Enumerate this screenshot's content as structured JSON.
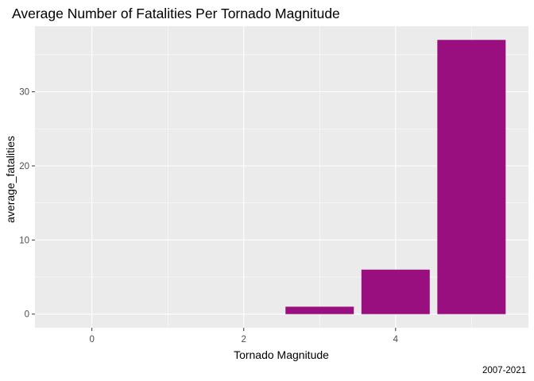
{
  "chart_data": {
    "type": "bar",
    "title": "Average Number of Fatalities Per Tornado Magnitude",
    "xlabel": "Tornado Magnitude",
    "ylabel": "average_fatalities",
    "caption": "2007-2021",
    "x": [
      0,
      1,
      2,
      3,
      4,
      5
    ],
    "values": [
      0,
      0,
      0,
      1,
      6,
      37
    ],
    "xlim": [
      -0.75,
      5.75
    ],
    "ylim": [
      -1.85,
      38.85
    ],
    "xticks": [
      0,
      2,
      4
    ],
    "yticks": [
      0,
      10,
      20,
      30
    ],
    "bar_color": "#990F7F",
    "panel_background": "#EBEBEB",
    "grid": true,
    "legend": "none"
  }
}
